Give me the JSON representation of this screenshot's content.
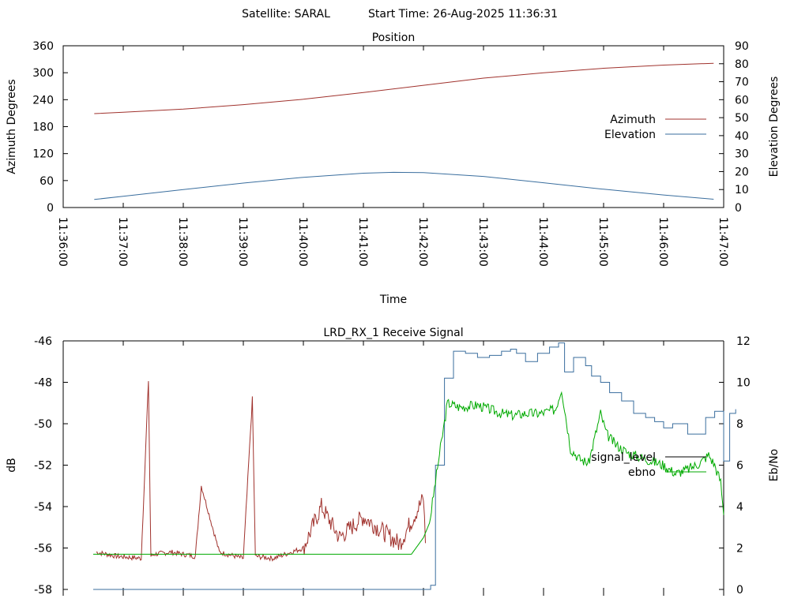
{
  "header": {
    "satellite_label": "Satellite: SARAL",
    "start_time_label": "Start Time: 26-Aug-2025 11:36:31"
  },
  "colors": {
    "azimuth": "#a0322d",
    "elevation": "#3a6e9e",
    "signal_level_noise": "#a0322d",
    "signal_level": "#3a6e9e",
    "ebno": "#00aa00",
    "axis": "#000000",
    "background": "#ffffff"
  },
  "chart_data": [
    {
      "type": "line",
      "title": "Position",
      "xlabel": "Time",
      "ylabel": "Azimuth Degrees",
      "y2label": "Elevation Degrees",
      "xlim": [
        "11:36:00",
        "11:47:00"
      ],
      "ylim": [
        0,
        360
      ],
      "y2lim": [
        0,
        90
      ],
      "x_ticks": [
        "11:36:00",
        "11:37:00",
        "11:38:00",
        "11:39:00",
        "11:40:00",
        "11:41:00",
        "11:42:00",
        "11:43:00",
        "11:44:00",
        "11:45:00",
        "11:46:00",
        "11:47:00"
      ],
      "y_ticks": [
        0,
        60,
        120,
        180,
        240,
        300,
        360
      ],
      "y2_ticks": [
        0,
        10,
        20,
        30,
        40,
        50,
        60,
        70,
        80,
        90
      ],
      "legend_position": "right",
      "grid": false,
      "series": [
        {
          "name": "Azimuth",
          "axis": "y",
          "x": [
            "11:36:31",
            "11:37:00",
            "11:38:00",
            "11:39:00",
            "11:40:00",
            "11:41:00",
            "11:42:00",
            "11:43:00",
            "11:44:00",
            "11:45:00",
            "11:46:00",
            "11:46:50"
          ],
          "values": [
            209,
            212,
            219,
            229,
            241,
            256,
            272,
            288,
            300,
            310,
            317,
            321
          ]
        },
        {
          "name": "Elevation",
          "axis": "y2",
          "x": [
            "11:36:31",
            "11:37:00",
            "11:38:00",
            "11:39:00",
            "11:40:00",
            "11:41:00",
            "11:41:30",
            "11:42:00",
            "11:43:00",
            "11:44:00",
            "11:45:00",
            "11:46:00",
            "11:46:50"
          ],
          "values": [
            4.5,
            6.3,
            10.0,
            13.6,
            16.8,
            19.1,
            19.6,
            19.4,
            17.3,
            13.8,
            10.2,
            7.0,
            4.6
          ]
        }
      ]
    },
    {
      "type": "line",
      "title": "LRD_RX_1 Receive Signal",
      "xlabel": "",
      "ylabel": "dB",
      "y2label": "Eb/No",
      "ylim": [
        -58,
        -46
      ],
      "y2lim": [
        0,
        12
      ],
      "y_ticks": [
        -58,
        -56,
        -54,
        -52,
        -50,
        -48,
        -46
      ],
      "y2_ticks": [
        0,
        2,
        4,
        6,
        8,
        10,
        12
      ],
      "legend_position": "right",
      "grid": false,
      "series": [
        {
          "name": "signal_level",
          "axis": "y",
          "x_minutes": [
            0.5,
            0.6,
            0.8,
            1.2,
            1.8,
            2.5,
            3.2,
            3.6,
            4.0,
            4.6,
            5.3,
            5.8,
            6.0,
            6.12,
            6.2,
            6.35,
            6.5,
            6.7,
            6.9,
            7.1,
            7.3,
            7.45,
            7.55,
            7.7,
            7.9,
            8.1,
            8.25,
            8.35,
            8.5,
            8.7,
            8.8,
            8.95,
            9.1,
            9.3,
            9.5,
            9.7,
            9.85,
            10.0,
            10.15,
            10.4,
            10.7,
            10.85,
            11.0,
            11.1,
            11.2
          ],
          "values": [
            -58,
            -58,
            -58,
            -58,
            -58,
            -58,
            -58,
            -58,
            -58,
            -58,
            -58,
            -58,
            -58,
            -57.8,
            -52.0,
            -47.8,
            -46.5,
            -46.6,
            -46.8,
            -46.7,
            -46.5,
            -46.4,
            -46.6,
            -47.0,
            -46.6,
            -46.3,
            -46.1,
            -47.5,
            -46.8,
            -47.2,
            -47.7,
            -48.0,
            -48.5,
            -48.9,
            -49.5,
            -49.7,
            -49.9,
            -50.2,
            -50.0,
            -50.5,
            -49.7,
            -49.4,
            -51.8,
            -49.5,
            -49.3
          ]
        },
        {
          "name": "ebno",
          "axis": "y2",
          "x_minutes": [
            0.5,
            0.8,
            1.2,
            1.8,
            2.5,
            3.2,
            3.6,
            4.0,
            4.6,
            5.3,
            5.8,
            6.0,
            6.1,
            6.25,
            6.4,
            6.6,
            6.9,
            7.1,
            7.3,
            7.5,
            7.7,
            7.95,
            8.2,
            8.3,
            8.45,
            8.6,
            8.75,
            8.95,
            9.05,
            9.2,
            9.4,
            9.6,
            9.8,
            10.0,
            10.2,
            10.4,
            10.6,
            10.75,
            10.85,
            10.95,
            11.0
          ],
          "values": [
            1.7,
            1.7,
            1.7,
            1.7,
            1.7,
            1.7,
            1.7,
            1.7,
            1.7,
            1.7,
            1.7,
            2.5,
            3.2,
            6.2,
            9.0,
            8.8,
            8.9,
            8.7,
            8.5,
            8.4,
            8.5,
            8.5,
            8.7,
            9.7,
            6.8,
            6.3,
            6.1,
            8.5,
            7.5,
            7.0,
            6.6,
            6.4,
            6.2,
            6.0,
            5.6,
            5.8,
            6.1,
            6.5,
            6.0,
            5.2,
            3.6
          ]
        },
        {
          "name": "",
          "axis": "y",
          "description_values": "noisy baseline between 11:36:31 and 11:42:05",
          "x_minutes": [
            0.55,
            0.9,
            1.3,
            1.42,
            1.46,
            1.52,
            1.8,
            2.2,
            2.3,
            2.6,
            3.0,
            3.15,
            3.2,
            3.5,
            4.0,
            4.3,
            4.6,
            5.0,
            5.6,
            6.0,
            6.05
          ],
          "values": [
            -56.2,
            -56.4,
            -56.5,
            -47.9,
            -56.4,
            -56.3,
            -56.2,
            -56.4,
            -53.0,
            -56.2,
            -56.5,
            -48.8,
            -56.4,
            -56.5,
            -56.0,
            -54.0,
            -55.5,
            -54.5,
            -55.8,
            -53.6,
            -56.8
          ]
        }
      ]
    }
  ]
}
